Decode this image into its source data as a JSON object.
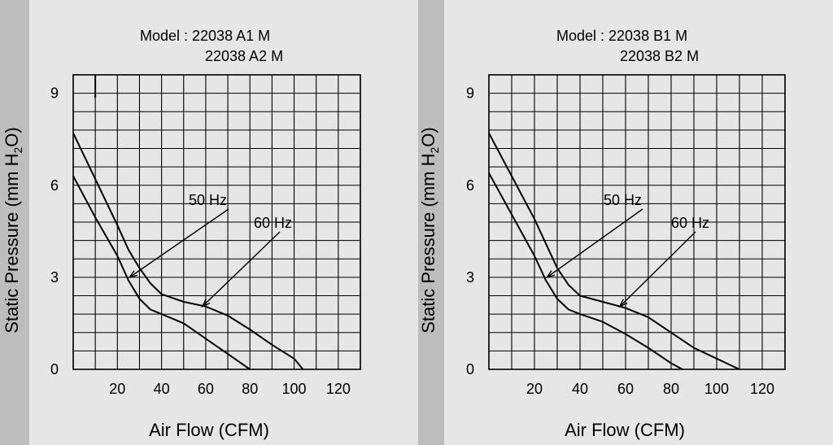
{
  "colors": {
    "background": "#bdbdbd",
    "panel": "#e6e6e6",
    "grid": "#000000",
    "curve": "#000000",
    "text": "#000000"
  },
  "chart_data": [
    {
      "type": "line",
      "title_line1": "Model : 22038 A1 M",
      "title_line2": "22038 A2 M",
      "xlabel": "Air Flow (CFM)",
      "ylabel": "Static Pressure (mm H",
      "ylabel_sub": "2",
      "ylabel_tail": "O)",
      "xlim": [
        0,
        130
      ],
      "ylim": [
        0,
        9.6
      ],
      "x_ticks": [
        20,
        40,
        60,
        80,
        100,
        120
      ],
      "x_tick_labels": [
        "20",
        "40",
        "60",
        "80",
        "100",
        "120"
      ],
      "y_ticks": [
        0,
        3,
        6,
        9
      ],
      "y_tick_labels": [
        "0",
        "3",
        "6",
        "9"
      ],
      "grid": true,
      "series": [
        {
          "name": "60 Hz",
          "x": [
            0,
            10,
            20,
            25,
            30,
            35,
            40,
            50,
            60,
            70,
            80,
            90,
            100,
            104
          ],
          "y": [
            7.7,
            6.2,
            4.7,
            3.9,
            3.3,
            2.8,
            2.45,
            2.2,
            2.05,
            1.75,
            1.3,
            0.8,
            0.35,
            0
          ]
        },
        {
          "name": "50 Hz",
          "x": [
            0,
            10,
            20,
            25,
            30,
            35,
            40,
            50,
            60,
            70,
            80
          ],
          "y": [
            6.3,
            4.95,
            3.7,
            2.9,
            2.3,
            1.95,
            1.8,
            1.5,
            1.0,
            0.5,
            0
          ]
        }
      ],
      "annotations": [
        {
          "text": "50 Hz",
          "arrow_x": 25.5,
          "arrow_y": 3.0
        },
        {
          "text": "60 Hz",
          "arrow_x": 58.5,
          "arrow_y": 2.05
        }
      ]
    },
    {
      "type": "line",
      "title_line1": "Model : 22038 B1 M",
      "title_line2": "22038 B2 M",
      "xlabel": "Air Flow (CFM)",
      "ylabel": "Static Pressure (mm H",
      "ylabel_sub": "2",
      "ylabel_tail": "O)",
      "xlim": [
        0,
        130
      ],
      "ylim": [
        0,
        9.6
      ],
      "x_ticks": [
        20,
        40,
        60,
        80,
        100,
        120
      ],
      "x_tick_labels": [
        "20",
        "40",
        "60",
        "80",
        "100",
        "120"
      ],
      "y_ticks": [
        0,
        3,
        6,
        9
      ],
      "y_tick_labels": [
        "0",
        "3",
        "6",
        "9"
      ],
      "grid": true,
      "series": [
        {
          "name": "60 Hz",
          "x": [
            0,
            10,
            20,
            25,
            30,
            35,
            40,
            50,
            60,
            70,
            80,
            90,
            100,
            110
          ],
          "y": [
            7.7,
            6.3,
            4.9,
            4.1,
            3.3,
            2.75,
            2.4,
            2.2,
            2.0,
            1.7,
            1.2,
            0.7,
            0.35,
            0
          ]
        },
        {
          "name": "50 Hz",
          "x": [
            0,
            10,
            20,
            25,
            30,
            35,
            40,
            50,
            60,
            70,
            80,
            85
          ],
          "y": [
            6.4,
            5.05,
            3.7,
            2.9,
            2.3,
            1.95,
            1.8,
            1.55,
            1.15,
            0.7,
            0.2,
            0
          ]
        }
      ],
      "annotations": [
        {
          "text": "50 Hz",
          "arrow_x": 25.5,
          "arrow_y": 3.0
        },
        {
          "text": "60 Hz",
          "arrow_x": 57.5,
          "arrow_y": 2.05
        }
      ]
    }
  ]
}
